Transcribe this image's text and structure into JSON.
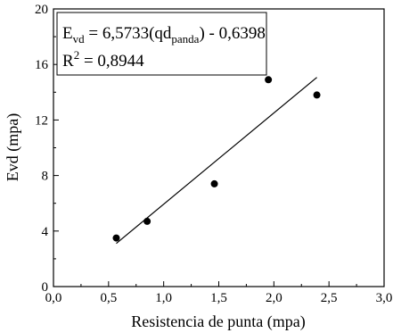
{
  "chart_data": {
    "type": "scatter",
    "xlabel": "Resistencia de punta (mpa)",
    "ylabel": "Evd (mpa)",
    "xlim": [
      0,
      3.0
    ],
    "ylim": [
      0,
      20
    ],
    "x_ticks": [
      0,
      0.5,
      1.0,
      1.5,
      2.0,
      2.5,
      3.0
    ],
    "x_tick_labels": [
      "0,0",
      "0,5",
      "1,0",
      "1,5",
      "2,0",
      "2,5",
      "3,0"
    ],
    "y_ticks": [
      0,
      4,
      8,
      12,
      16,
      20
    ],
    "y_tick_labels": [
      "0",
      "4",
      "8",
      "12",
      "16",
      "20"
    ],
    "points": [
      {
        "x": 0.57,
        "y": 3.5
      },
      {
        "x": 0.85,
        "y": 4.7
      },
      {
        "x": 1.46,
        "y": 7.4
      },
      {
        "x": 1.95,
        "y": 14.9
      },
      {
        "x": 2.39,
        "y": 13.8
      }
    ],
    "fit": {
      "slope": 6.5733,
      "intercept": -0.6398,
      "x_from": 0.57,
      "x_to": 2.39
    },
    "annotation": {
      "eq_prefix": "E",
      "eq_sub": "vd",
      "eq_mid": " = 6,5733(qd",
      "eq_sub2": "panda",
      "eq_suffix": ") - 0,6398",
      "r2_prefix": "R",
      "r2_sup": "2",
      "r2_suffix": " = 0,8944"
    },
    "grid": false,
    "legend": "none"
  }
}
